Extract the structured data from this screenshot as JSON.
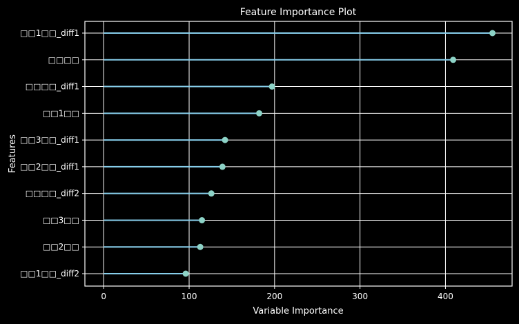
{
  "chart_data": {
    "type": "lollipop",
    "title": "Feature Importance Plot",
    "xlabel": "Variable Importance",
    "ylabel": "Features",
    "xlim": [
      -22,
      478
    ],
    "xticks": [
      0,
      100,
      200,
      300,
      400
    ],
    "xtick_labels": [
      "0",
      "100",
      "200",
      "300",
      "400"
    ],
    "grid": true,
    "categories": [
      "□□1□□_diff1",
      "□□□□",
      "□□□□_diff1",
      "□□1□□",
      "□□3□□_diff1",
      "□□2□□_diff1",
      "□□□□_diff2",
      "□□3□□",
      "□□2□□",
      "□□1□□_diff2"
    ],
    "values": [
      455,
      409,
      197,
      182,
      142,
      139,
      126,
      115,
      113,
      96
    ],
    "colors": {
      "background": "#000000",
      "line": "#87ceeb",
      "marker": "#8dd3c7",
      "grid": "#ffffff",
      "text": "#ffffff"
    }
  }
}
